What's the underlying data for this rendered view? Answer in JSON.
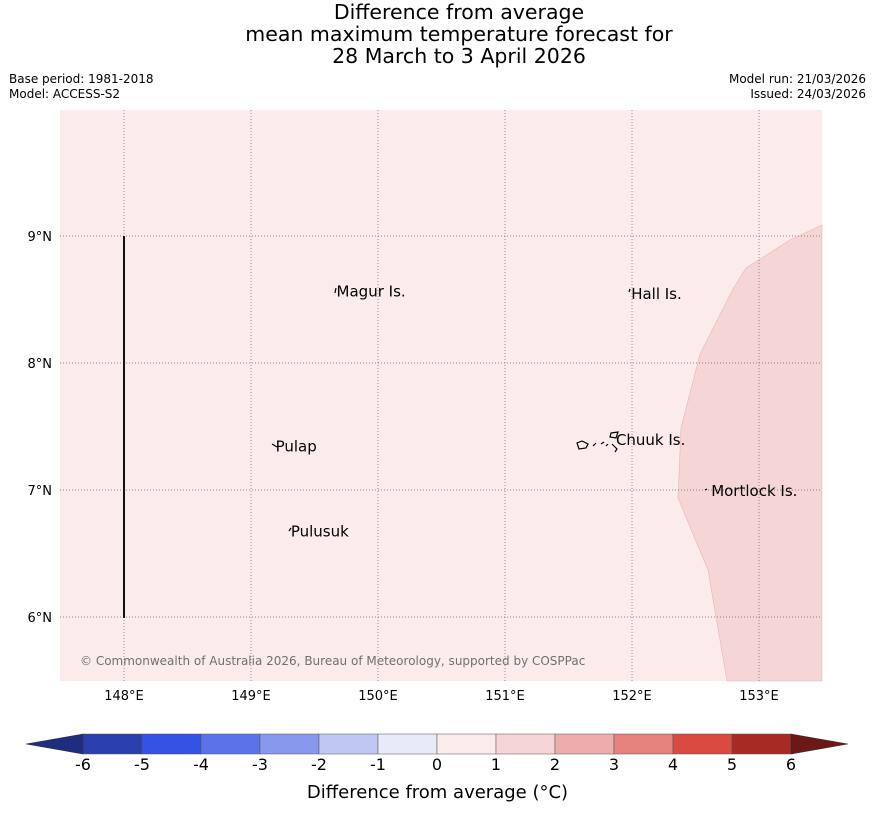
{
  "title": {
    "line1": "Difference from average",
    "line2": "mean maximum temperature forecast for",
    "line3": "28 March to 3 April 2026"
  },
  "meta": {
    "base_period": "Base period: 1981-2018",
    "model": "Model: ACCESS-S2",
    "model_run": "Model run: 21/03/2026",
    "issued": "Issued: 24/03/2026"
  },
  "map": {
    "background_anomaly_band": "0 to 1",
    "eastern_anomaly_band": "1 to 2",
    "lon_labels": [
      "148°E",
      "149°E",
      "150°E",
      "151°E",
      "152°E",
      "153°E"
    ],
    "lat_labels": [
      "9°N",
      "8°N",
      "7°N",
      "6°N"
    ],
    "places": [
      {
        "name": "Magur Is.",
        "lon": 149.65,
        "lat": 8.57
      },
      {
        "name": "Hall Is.",
        "lon": 151.97,
        "lat": 8.55
      },
      {
        "name": "Pulap",
        "lon": 149.17,
        "lat": 7.35
      },
      {
        "name": "Chuuk Is.",
        "lon": 151.85,
        "lat": 7.4
      },
      {
        "name": "Mortlock Is.",
        "lon": 152.6,
        "lat": 7.0
      },
      {
        "name": "Pulusuk",
        "lon": 149.29,
        "lat": 6.68
      }
    ],
    "copyright": "© Commonwealth of Australia 2026, Bureau of Meteorology, supported by COSPPac"
  },
  "colorbar": {
    "ticks": [
      "-6",
      "-5",
      "-4",
      "-3",
      "-2",
      "-1",
      "0",
      "1",
      "2",
      "3",
      "4",
      "5",
      "6"
    ],
    "colors": [
      "#2a3fad",
      "#3353e4",
      "#5b72e8",
      "#8898ec",
      "#bfc7f2",
      "#e8eafa",
      "#fbeceb",
      "#f5d5d5",
      "#ecaeab",
      "#e5827d",
      "#da4a41",
      "#a82a24"
    ],
    "low_extend_color": "#1f2d80",
    "high_extend_color": "#6b1816",
    "label": "Difference from average (°C)"
  }
}
